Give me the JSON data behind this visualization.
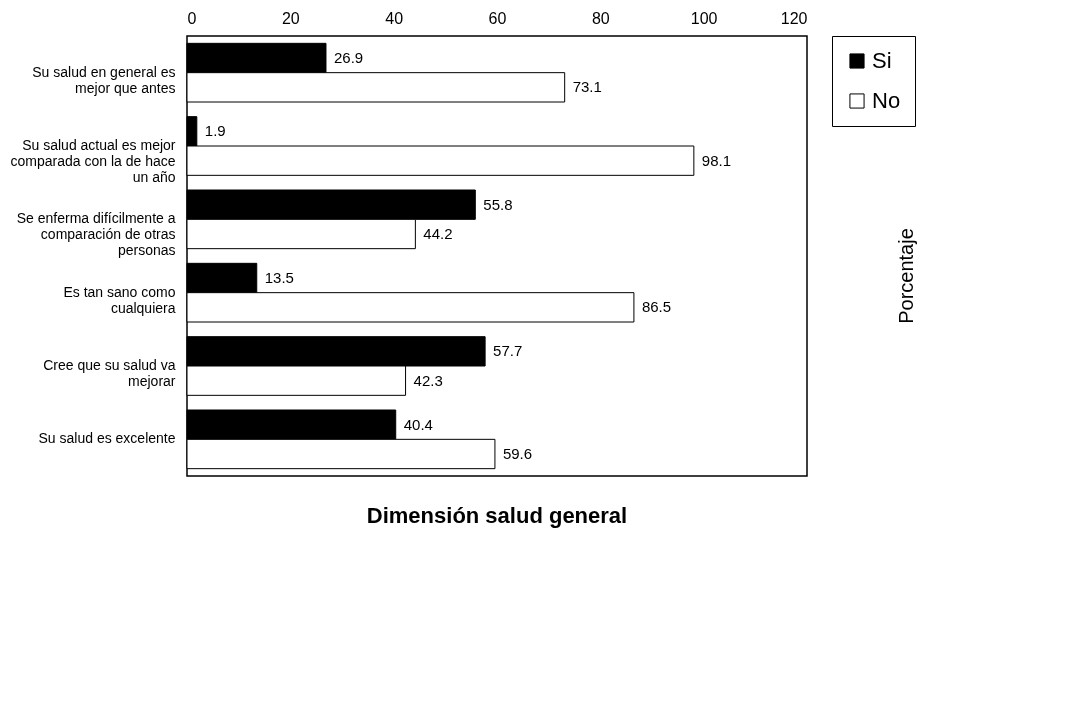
{
  "chart_data": {
    "type": "bar",
    "orientation": "horizontal",
    "title": "Dimensión salud general",
    "annotations": [
      "Porcentaje"
    ],
    "categories": [
      "Su salud en general es mejor que antes",
      "Su salud actual es mejor comparada con la de hace un año",
      "Se enferma difícilmente a comparación de otras personas",
      "Es tan sano como cualquiera",
      "Cree que su salud va mejorar",
      "Su salud es excelente"
    ],
    "series": [
      {
        "name": "Si",
        "color": "#000000",
        "values": [
          26.9,
          1.9,
          55.8,
          13.5,
          57.7,
          40.4
        ]
      },
      {
        "name": "No",
        "color": "#ffffff",
        "values": [
          73.1,
          98.1,
          44.2,
          86.5,
          42.3,
          59.6
        ]
      }
    ],
    "xlim": [
      0,
      120
    ],
    "xticks": [
      0,
      20,
      40,
      60,
      80,
      100,
      120
    ],
    "data_labels": true,
    "legend": "top right"
  }
}
